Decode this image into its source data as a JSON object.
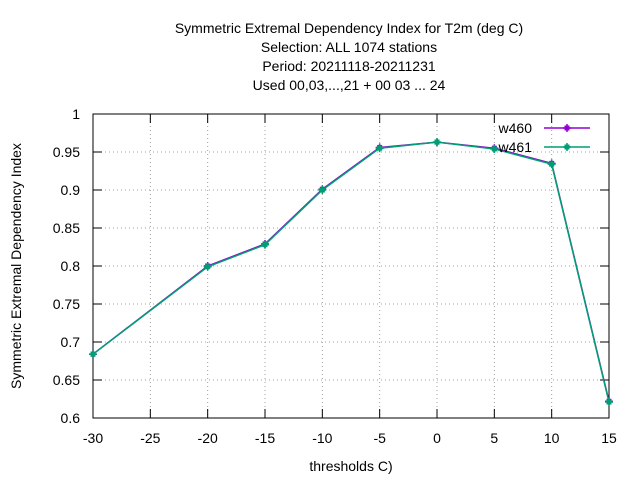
{
  "chart_data": {
    "type": "line",
    "title_lines": [
      "Symmetric Extremal Dependency Index  for T2m (deg C)",
      "Selection: ALL   1074 stations",
      "Period: 20211118-20211231",
      "Used  00,03,...,21  + 00 03 ... 24"
    ],
    "xlabel": "thresholds C)",
    "ylabel": "Symmetric Extremal Dependency Index",
    "xlim": [
      -30,
      15
    ],
    "ylim": [
      0.6,
      1.0
    ],
    "xticks": [
      "-30",
      "-25",
      "-20",
      "-15",
      "-10",
      "-5",
      "0",
      "5",
      "10",
      "15"
    ],
    "yticks": [
      "0.6",
      "0.65",
      "0.7",
      "0.75",
      "0.8",
      "0.85",
      "0.9",
      "0.95",
      "1"
    ],
    "grid": true,
    "legend_position": "top-right",
    "x": [
      -30,
      -20,
      -15,
      -10,
      -5,
      0,
      5,
      10,
      15
    ],
    "series": [
      {
        "name": "w460",
        "color": "#9400d3",
        "values": [
          0.684,
          0.8,
          0.829,
          0.901,
          0.956,
          0.963,
          0.955,
          0.935,
          0.622
        ]
      },
      {
        "name": "w461",
        "color": "#009e73",
        "values": [
          0.684,
          0.799,
          0.828,
          0.9,
          0.955,
          0.963,
          0.954,
          0.934,
          0.621
        ]
      }
    ]
  }
}
